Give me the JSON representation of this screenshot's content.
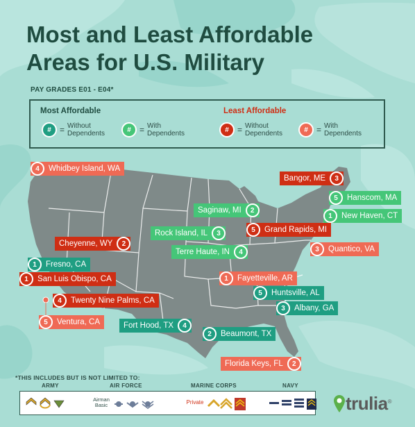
{
  "title_line1": "Most and Least Affordable",
  "title_line2": "Areas for U.S. Military",
  "subtitle": "PAY GRADES E01 - E04*",
  "legend": {
    "most_label": "Most Affordable",
    "least_label": "Least Affordable",
    "badge_symbol": "#",
    "equals": "=",
    "without_dependents": "Without Dependents",
    "with_dependents": "With Dependents",
    "without_line1": "Without",
    "without_line2": "Dependents",
    "with_line1": "With",
    "with_line2": "Dependents"
  },
  "colors": {
    "most_without": "#1f9e82",
    "most_with": "#45c678",
    "least_without": "#cf2e14",
    "least_with": "#ef6a55",
    "title": "#1f4c40",
    "map_land": "#7f8a89",
    "camo_light": "#b7e3dc",
    "camo_mid": "#9fd8cf",
    "camo_dark": "#8ccfc5"
  },
  "locations": [
    {
      "name": "Whidbey Island, WA",
      "rank": "4",
      "category": "least",
      "dependents": "with"
    },
    {
      "name": "Bangor, ME",
      "rank": "3",
      "category": "least",
      "dependents": "without"
    },
    {
      "name": "Hanscom, MA",
      "rank": "5",
      "category": "most",
      "dependents": "with"
    },
    {
      "name": "Saginaw, MI",
      "rank": "2",
      "category": "most",
      "dependents": "with"
    },
    {
      "name": "New Haven, CT",
      "rank": "1",
      "category": "most",
      "dependents": "with"
    },
    {
      "name": "Rock Island, IL",
      "rank": "3",
      "category": "most",
      "dependents": "with"
    },
    {
      "name": "Grand Rapids, MI",
      "rank": "5",
      "category": "least",
      "dependents": "without"
    },
    {
      "name": "Cheyenne, WY",
      "rank": "2",
      "category": "least",
      "dependents": "without"
    },
    {
      "name": "Terre Haute, IN",
      "rank": "4",
      "category": "most",
      "dependents": "with"
    },
    {
      "name": "Quantico, VA",
      "rank": "3",
      "category": "least",
      "dependents": "with"
    },
    {
      "name": "Fresno, CA",
      "rank": "1",
      "category": "most",
      "dependents": "without"
    },
    {
      "name": "San Luis Obispo, CA",
      "rank": "1",
      "category": "least",
      "dependents": "without"
    },
    {
      "name": "Fayetteville, AR",
      "rank": "1",
      "category": "least",
      "dependents": "with"
    },
    {
      "name": "Huntsville, AL",
      "rank": "5",
      "category": "most",
      "dependents": "without"
    },
    {
      "name": "Twenty Nine Palms, CA",
      "rank": "4",
      "category": "least",
      "dependents": "without"
    },
    {
      "name": "Albany, GA",
      "rank": "3",
      "category": "most",
      "dependents": "without"
    },
    {
      "name": "Ventura, CA",
      "rank": "5",
      "category": "least",
      "dependents": "with"
    },
    {
      "name": "Fort Hood, TX",
      "rank": "4",
      "category": "most",
      "dependents": "without"
    },
    {
      "name": "Beaumont, TX",
      "rank": "2",
      "category": "most",
      "dependents": "without"
    },
    {
      "name": "Florida Keys, FL",
      "rank": "2",
      "category": "least",
      "dependents": "with"
    }
  ],
  "footnote": "*THIS INCLUDES BUT IS NOT LIMITED TO:",
  "branches": {
    "army": "ARMY",
    "air_force": "AIR FORCE",
    "marine_corps": "MARINE CORPS",
    "navy": "NAVY"
  },
  "air_force_rank_line1": "Airman",
  "air_force_rank_line2": "Basic",
  "marine_rank": "Private",
  "brand": "trulia",
  "brand_mark": "®"
}
